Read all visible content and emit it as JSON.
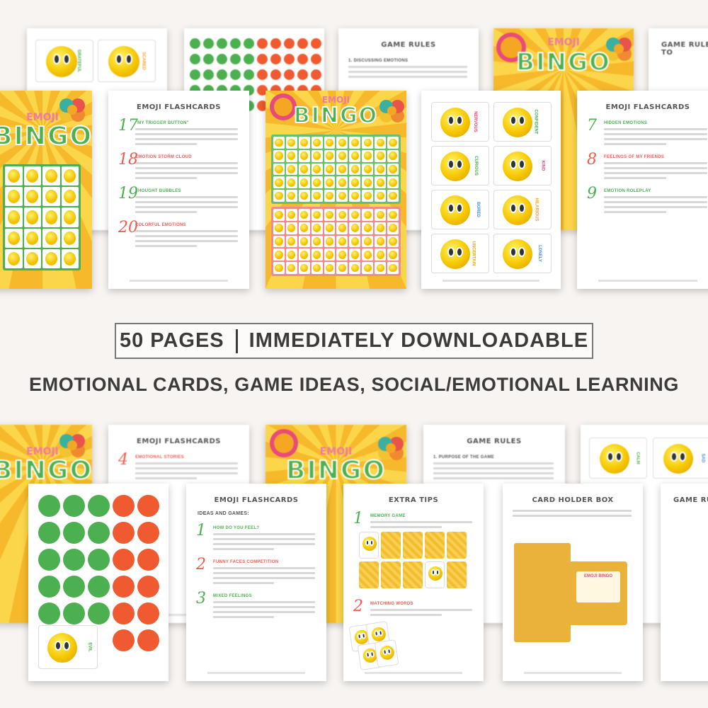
{
  "banner": {
    "count": "50 PAGES",
    "separator": "|",
    "text": "IMMEDIATELY DOWNLOADABLE"
  },
  "subtitle": "EMOTIONAL CARDS, GAME IDEAS, SOCIAL/EMOTIONAL LEARNING",
  "cover": {
    "small": "EMOJI",
    "big": "BINGO"
  },
  "colors": {
    "green": "#4cb050",
    "red": "#f05a30",
    "yellow": "#f6c700",
    "pink": "#e84a7a",
    "text": "#3d3a3a",
    "background": "#f8f4f1"
  },
  "pages": {
    "cards_top_back": {
      "labels": [
        "GRATEFUL",
        "SCARED"
      ]
    },
    "game_rules_top": {
      "title": "GAME RULES",
      "section": "1. DISCUSSING EMOTIONS"
    },
    "game_rules_to": {
      "title": "GAME RULES TO"
    },
    "flashcards_a": {
      "title": "EMOJI FLASHCARDS",
      "items": [
        {
          "num": "17",
          "label": "\"MY TRIGGER BUTTON\"",
          "color": "#4cb050"
        },
        {
          "num": "18",
          "label": "EMOTION STORM CLOUD",
          "color": "#f05a50"
        },
        {
          "num": "19",
          "label": "THOUGHT BUBBLES",
          "color": "#4cb050"
        },
        {
          "num": "20",
          "label": "COLORFUL EMOTIONS",
          "color": "#f05a50"
        }
      ]
    },
    "cards_front": {
      "labels": [
        {
          "t": "NERVOUS",
          "c": "#e84a7a"
        },
        {
          "t": "CONFIDENT",
          "c": "#4cb050"
        },
        {
          "t": "CURIOUS",
          "c": "#4cb050"
        },
        {
          "t": "KIND",
          "c": "#e84a7a"
        },
        {
          "t": "BORED",
          "c": "#4a8ee8"
        },
        {
          "t": "HILARIOUS",
          "c": "#f0a030"
        },
        {
          "t": "UNCERTAIN",
          "c": "#f0a030"
        },
        {
          "t": "LONELY",
          "c": "#4a8ee8"
        }
      ]
    },
    "flashcards_b": {
      "title": "EMOJI FLASHCARDS",
      "items": [
        {
          "num": "7",
          "label": "HIDDEN EMOTIONS",
          "color": "#4cb050"
        },
        {
          "num": "8",
          "label": "FEELINGS OF MY FRIENDS",
          "color": "#f05a50"
        },
        {
          "num": "9",
          "label": "EMOTION ROLEPLAY",
          "color": "#4cb050"
        }
      ]
    },
    "flashcards_c": {
      "title": "EMOJI FLASHCARDS",
      "items": [
        {
          "num": "4",
          "label": "EMOTIONAL STORIES",
          "color": "#f05a50"
        }
      ]
    },
    "game_rules_bottom": {
      "title": "GAME RULES",
      "section": "1. PURPOSE OF THE GAME"
    },
    "cards_bottom_back": {
      "labels": [
        "CALM",
        "SAD"
      ]
    },
    "dots_page": {
      "card_label": "EVIL"
    },
    "flashcards_d": {
      "title": "EMOJI FLASHCARDS",
      "intro": "IDEAS AND GAMES:",
      "items": [
        {
          "num": "1",
          "label": "HOW DO YOU FEEL?",
          "color": "#4cb050"
        },
        {
          "num": "2",
          "label": "FUNNY FACES COMPETITION",
          "color": "#f05a50"
        },
        {
          "num": "3",
          "label": "MIXED FEELINGS",
          "color": "#4cb050"
        }
      ]
    },
    "extra_tips": {
      "title": "EXTRA TIPS",
      "items": [
        {
          "num": "1",
          "label": "MEMORY GAME",
          "color": "#4cb050"
        },
        {
          "num": "2",
          "label": "MATCHING WORDS",
          "color": "#f05a50"
        }
      ]
    },
    "card_holder": {
      "title": "CARD HOLDER BOX",
      "box_label": "EMOJI BINGO"
    },
    "game_rules_edge": {
      "title": "GAME RULES"
    }
  }
}
